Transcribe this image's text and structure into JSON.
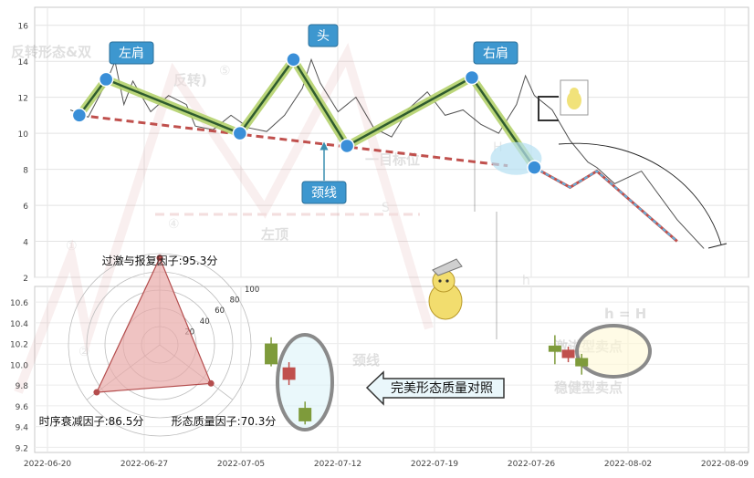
{
  "chart_data": [
    {
      "type": "line",
      "y_ticks": [
        16,
        14,
        12,
        10,
        8,
        6,
        4,
        2
      ],
      "ylim": [
        2,
        17
      ],
      "x_ticks": [
        "2022-06-20",
        "2022-06-27",
        "2022-07-05",
        "2022-07-12",
        "2022-07-19",
        "2022-07-26",
        "2022-08-02",
        "2022-08-09"
      ],
      "grid": true,
      "price_line": [
        [
          4,
          11.3
        ],
        [
          6,
          10.9
        ],
        [
          8,
          12.8
        ],
        [
          9,
          14.0
        ],
        [
          10,
          11.6
        ],
        [
          11,
          12.9
        ],
        [
          13,
          11.2
        ],
        [
          15,
          12.1
        ],
        [
          17,
          11.6
        ],
        [
          18,
          10.4
        ],
        [
          20,
          10.2
        ],
        [
          22,
          11.0
        ],
        [
          24,
          10.3
        ],
        [
          26,
          10.1
        ],
        [
          28,
          11.0
        ],
        [
          30,
          12.5
        ],
        [
          31,
          14.1
        ],
        [
          32,
          12.8
        ],
        [
          34,
          11.2
        ],
        [
          36,
          12.0
        ],
        [
          38,
          10.3
        ],
        [
          40,
          9.8
        ],
        [
          42,
          11.4
        ],
        [
          44,
          12.3
        ],
        [
          46,
          11.0
        ],
        [
          48,
          11.3
        ],
        [
          50,
          10.5
        ],
        [
          52,
          10.0
        ],
        [
          54,
          11.6
        ],
        [
          55,
          13.2
        ],
        [
          56,
          12.1
        ],
        [
          58,
          11.3
        ],
        [
          60,
          9.6
        ],
        [
          62,
          8.4
        ],
        [
          63,
          8.1
        ],
        [
          65,
          7.2
        ],
        [
          68,
          7.9
        ],
        [
          72,
          5.2
        ],
        [
          75,
          3.6
        ]
      ],
      "pattern_points": [
        [
          5,
          11.0
        ],
        [
          8,
          13.0
        ],
        [
          23,
          10.0
        ],
        [
          29,
          14.1
        ],
        [
          35,
          9.3
        ],
        [
          49,
          13.1
        ],
        [
          56,
          8.1
        ]
      ],
      "neckline": [
        [
          5,
          11.0
        ],
        [
          53,
          8.2
        ]
      ],
      "target_path": [
        [
          56,
          8.1
        ],
        [
          60,
          7.0
        ],
        [
          63,
          7.9
        ],
        [
          72,
          4.0
        ]
      ],
      "annotations": [
        {
          "text": "左肩",
          "x": 8,
          "y": 13.0
        },
        {
          "text": "头",
          "x": 29,
          "y": 14.1
        },
        {
          "text": "右肩",
          "x": 49,
          "y": 13.1
        },
        {
          "text": "颈线",
          "x": 29.5,
          "y": 10.0
        }
      ],
      "watermark_text": [
        "反转形态&双",
        "反转)",
        "左顶",
        "颈线",
        "一目标位",
        "h = H",
        "激进型卖点",
        "稳健型卖点"
      ],
      "watermark_marks": [
        "①",
        "②",
        "④",
        "⑤",
        "S",
        "H",
        "h"
      ]
    },
    {
      "type": "candlestick",
      "y_ticks": [
        10.6,
        10.4,
        10.2,
        10.0,
        9.8,
        9.6,
        9.4,
        9.2
      ],
      "ylim": [
        9.15,
        10.75
      ],
      "candles": [
        {
          "x": 26.5,
          "open": 10.0,
          "close": 10.2,
          "high": 10.26,
          "low": 9.98,
          "dir": "up"
        },
        {
          "x": 28.5,
          "open": 9.85,
          "close": 9.97,
          "high": 10.02,
          "low": 9.8,
          "dir": "down"
        },
        {
          "x": 30.3,
          "open": 9.58,
          "close": 9.45,
          "high": 9.64,
          "low": 9.42,
          "dir": "up"
        },
        {
          "x": 58.3,
          "open": 10.18,
          "close": 10.12,
          "high": 10.28,
          "low": 10.0,
          "dir": "up"
        },
        {
          "x": 59.8,
          "open": 10.14,
          "close": 10.06,
          "high": 10.17,
          "low": 10.02,
          "dir": "down"
        },
        {
          "x": 61.3,
          "open": 10.06,
          "close": 9.98,
          "high": 10.1,
          "low": 9.9,
          "dir": "up"
        }
      ],
      "callout": "完美形态质量对照"
    },
    {
      "type": "radar",
      "axes": [
        {
          "label": "过激与报复因子:95.3分",
          "value": 95.3
        },
        {
          "label": "形态质量因子:70.3分",
          "value": 70.3
        },
        {
          "label": "时序衰减因子:86.5分",
          "value": 86.5
        }
      ],
      "r_ticks": [
        20,
        40,
        60,
        80,
        100
      ],
      "rmax": 100
    }
  ],
  "colors": {
    "pattern": "#2f5b2f",
    "pattern_glow": "#b4d26c",
    "neckline": "#c0504d",
    "marker": "#3a8fd8",
    "price": "#1a1a1a",
    "up_candle": "#7e9b3b",
    "down_candle": "#c0504d",
    "radar_fill": "#e8a9a8",
    "radar_line": "#b44d4d"
  }
}
